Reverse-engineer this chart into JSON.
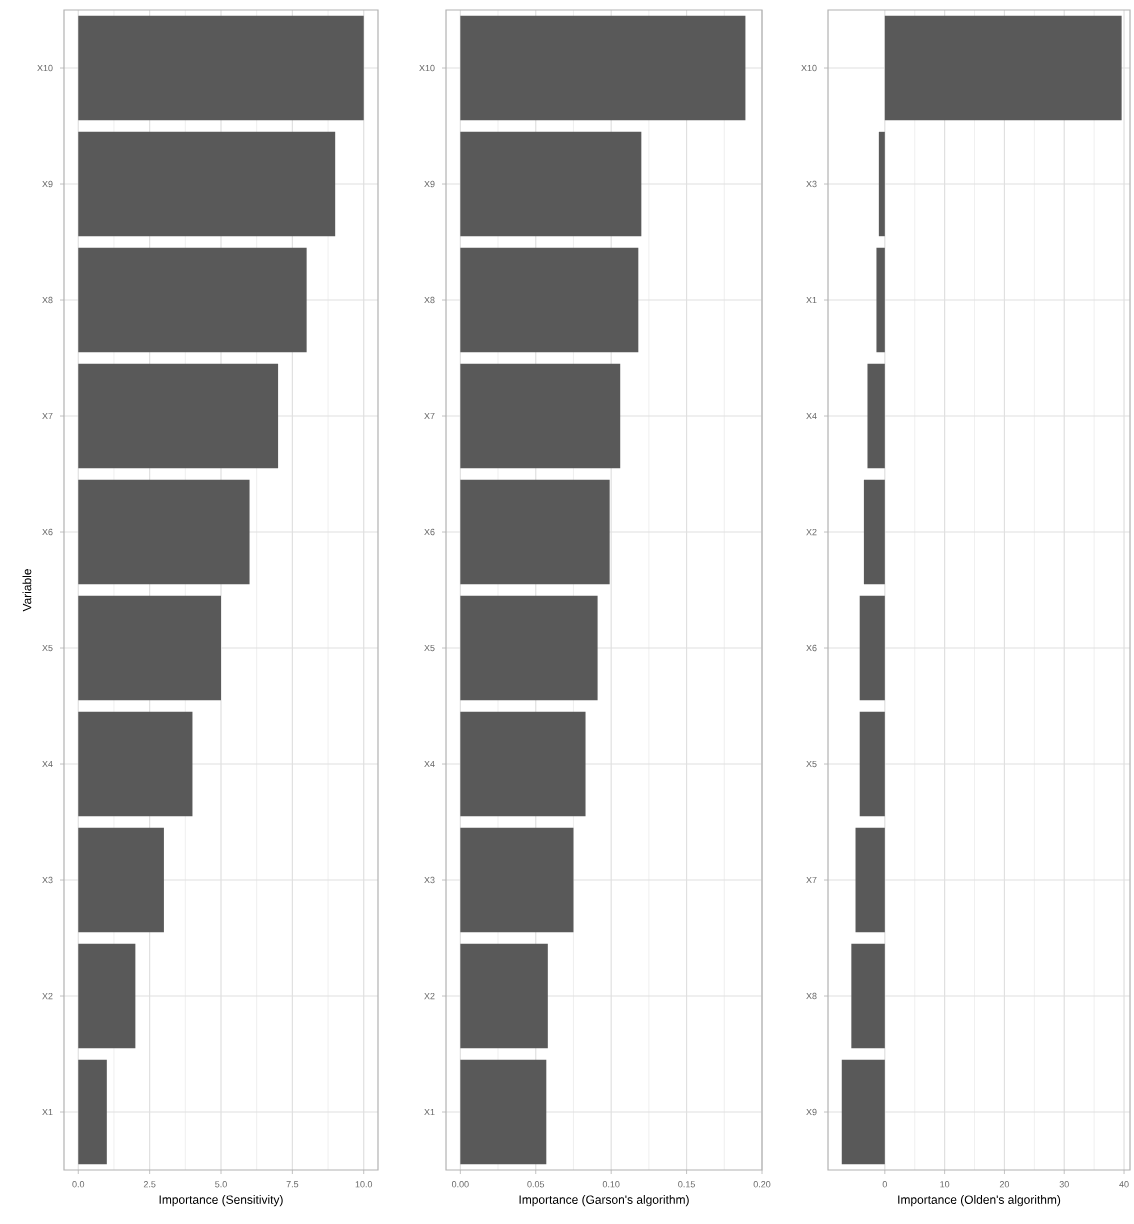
{
  "chart_data": [
    {
      "type": "bar",
      "orientation": "horizontal",
      "ylabel": "Variable",
      "xlabel": "Importance (Sensitivity)",
      "categories": [
        "X10",
        "X9",
        "X8",
        "X7",
        "X6",
        "X5",
        "X4",
        "X3",
        "X2",
        "X1"
      ],
      "values": [
        10,
        9,
        8,
        7,
        6,
        5,
        4,
        3,
        2,
        1
      ],
      "color": "#595959",
      "xlim": [
        -0.5,
        10.5
      ],
      "xticks": [
        {
          "value": 0,
          "label": "0.0"
        },
        {
          "value": 2.5,
          "label": "2.5"
        },
        {
          "value": 5,
          "label": "5.0"
        },
        {
          "value": 7.5,
          "label": "7.5"
        },
        {
          "value": 10,
          "label": "10.0"
        }
      ],
      "grid": true
    },
    {
      "type": "bar",
      "orientation": "horizontal",
      "xlabel": "Importance (Garson's algorithm)",
      "categories": [
        "X10",
        "X9",
        "X8",
        "X7",
        "X6",
        "X5",
        "X4",
        "X3",
        "X2",
        "X1"
      ],
      "values": [
        0.189,
        0.12,
        0.118,
        0.106,
        0.099,
        0.091,
        0.083,
        0.075,
        0.058,
        0.057
      ],
      "color": "#595959",
      "xlim": [
        -0.0095,
        0.2
      ],
      "xticks": [
        {
          "value": 0,
          "label": "0.00"
        },
        {
          "value": 0.05,
          "label": "0.05"
        },
        {
          "value": 0.1,
          "label": "0.10"
        },
        {
          "value": 0.15,
          "label": "0.15"
        },
        {
          "value": 0.2,
          "label": "0.20"
        }
      ],
      "grid": true
    },
    {
      "type": "bar",
      "orientation": "horizontal",
      "xlabel": "Importance (Olden's algorithm)",
      "categories": [
        "X10",
        "X3",
        "X1",
        "X4",
        "X2",
        "X6",
        "X5",
        "X7",
        "X8",
        "X9"
      ],
      "values": [
        39.6,
        -1.0,
        -1.4,
        -2.9,
        -3.5,
        -4.2,
        -4.2,
        -4.9,
        -5.6,
        -7.2
      ],
      "color": "#595959",
      "xlim": [
        -9.5,
        41
      ],
      "xticks": [
        0,
        10,
        20,
        30,
        40
      ],
      "grid": true
    }
  ]
}
